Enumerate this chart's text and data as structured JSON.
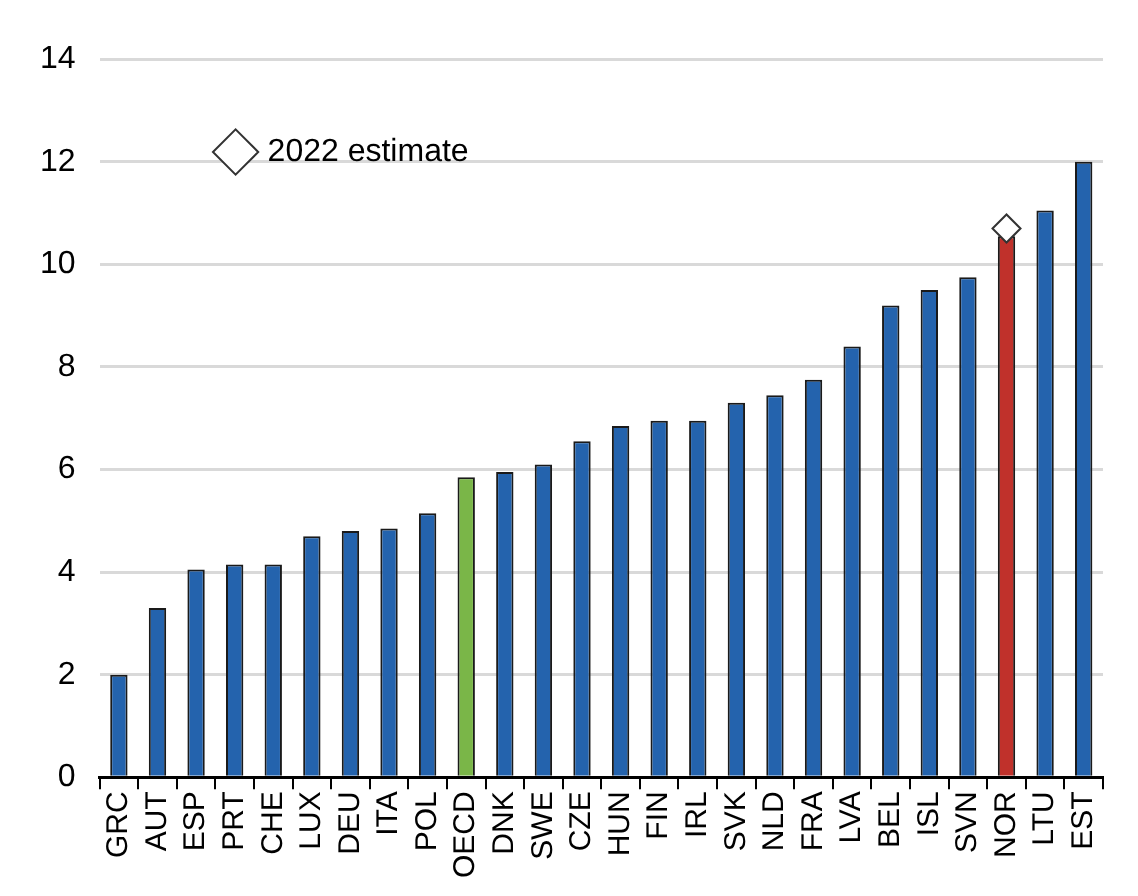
{
  "chart_data": {
    "type": "bar",
    "categories": [
      "GRC",
      "AUT",
      "ESP",
      "PRT",
      "CHE",
      "LUX",
      "DEU",
      "ITA",
      "POL",
      "OECD",
      "DNK",
      "SWE",
      "CZE",
      "HUN",
      "FIN",
      "IRL",
      "SVK",
      "NLD",
      "FRA",
      "LVA",
      "BEL",
      "ISL",
      "SVN",
      "NOR",
      "LTU",
      "EST"
    ],
    "series": [
      {
        "colors": [
          "#2463ad",
          "#2463ad",
          "#2463ad",
          "#2463ad",
          "#2463ad",
          "#2463ad",
          "#2463ad",
          "#2463ad",
          "#2463ad",
          "#7ab648",
          "#2463ad",
          "#2463ad",
          "#2463ad",
          "#2463ad",
          "#2463ad",
          "#2463ad",
          "#2463ad",
          "#2463ad",
          "#2463ad",
          "#2463ad",
          "#2463ad",
          "#2463ad",
          "#2463ad",
          "#c0312b",
          "#2463ad",
          "#2463ad"
        ],
        "values": [
          2.0,
          3.3,
          4.05,
          4.15,
          4.15,
          4.7,
          4.8,
          4.85,
          5.15,
          5.85,
          5.95,
          6.1,
          6.55,
          6.85,
          6.95,
          6.95,
          7.3,
          7.45,
          7.75,
          8.4,
          9.2,
          9.5,
          9.75,
          10.55,
          11.05,
          12.0
        ]
      },
      {
        "type": "scatter",
        "name": "2022 estimate",
        "color": "#ffffff",
        "marker": "diamond",
        "x": [
          "NOR"
        ],
        "values": [
          10.7
        ]
      }
    ],
    "ylim": [
      0,
      14
    ],
    "yticks": [
      0,
      2,
      4,
      6,
      8,
      10,
      12,
      14
    ],
    "grid": "y",
    "legend": "top left"
  }
}
